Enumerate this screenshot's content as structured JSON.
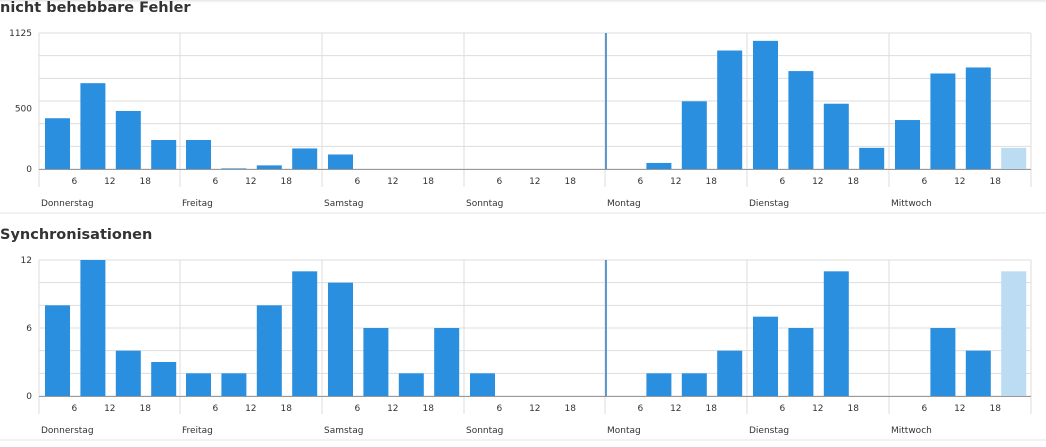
{
  "colors": {
    "bar": "#2b8fe0",
    "bar_current": "#bcdcf3",
    "grid": "#dddddd",
    "axis": "#999999",
    "now_line": "#2b7fc4",
    "text": "#333333"
  },
  "chart_data": [
    {
      "type": "bar",
      "title": "nicht behebbare Fehler",
      "ylim": [
        0,
        1125
      ],
      "yticks": [
        0,
        500,
        1125
      ],
      "hour_ticks": [
        "6",
        "12",
        "18"
      ],
      "days": [
        "Donnerstag",
        "Freitag",
        "Samstag",
        "Sonntag",
        "Montag",
        "Dienstag",
        "Mittwoch"
      ],
      "grid": true,
      "values": [
        420,
        710,
        480,
        240,
        240,
        5,
        30,
        170,
        120,
        0,
        0,
        0,
        0,
        0,
        0,
        0,
        0,
        50,
        560,
        980,
        1060,
        810,
        540,
        175,
        405,
        790,
        840,
        175
      ],
      "current_index": 27
    },
    {
      "type": "bar",
      "title": "Synchronisationen",
      "ylim": [
        0,
        12
      ],
      "yticks": [
        0,
        6,
        12
      ],
      "hour_ticks": [
        "6",
        "12",
        "18"
      ],
      "days": [
        "Donnerstag",
        "Freitag",
        "Samstag",
        "Sonntag",
        "Montag",
        "Dienstag",
        "Mittwoch"
      ],
      "grid": true,
      "values": [
        8,
        12,
        4,
        3,
        2,
        2,
        8,
        11,
        10,
        6,
        2,
        6,
        2,
        0,
        0,
        0,
        0,
        2,
        2,
        4,
        7,
        6,
        11,
        0,
        0,
        6,
        4,
        11
      ],
      "current_index": 27
    }
  ]
}
